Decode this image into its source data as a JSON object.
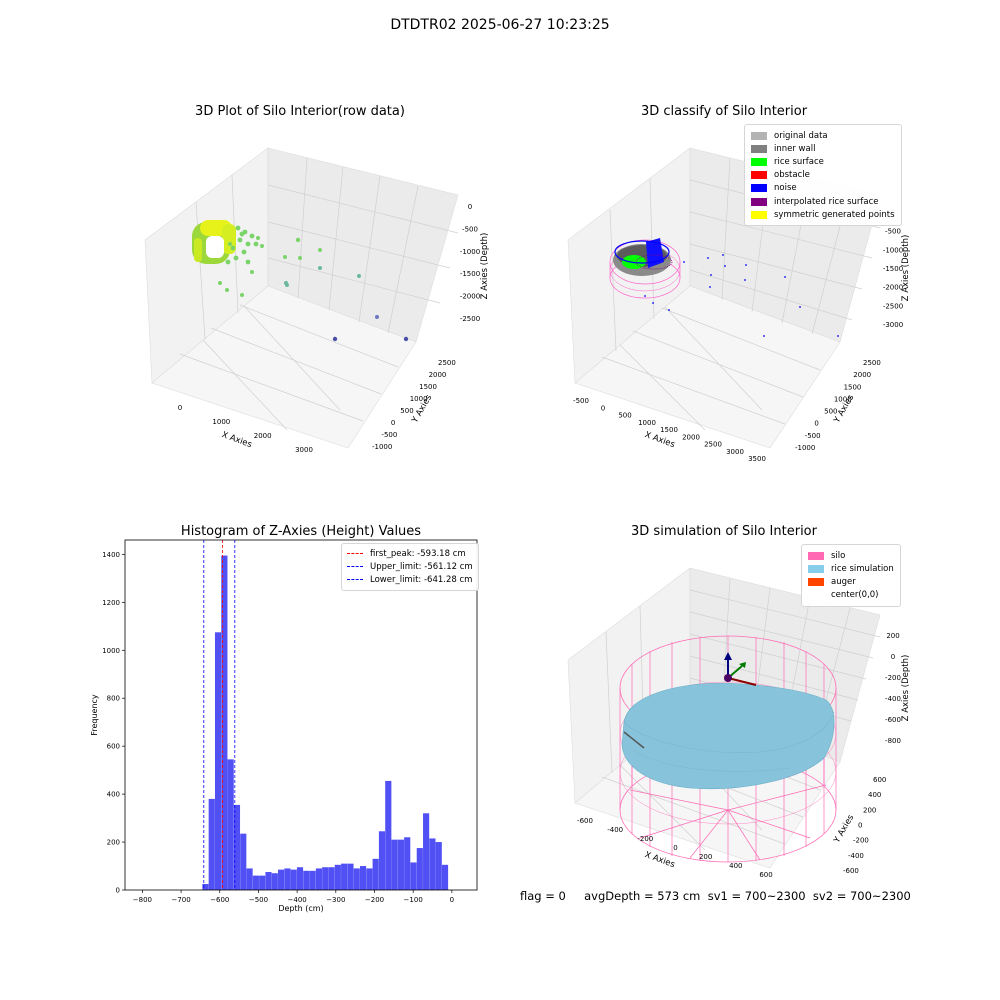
{
  "suptitle": "DTDTR02 2025-06-27 10:23:25",
  "chart_data": [
    {
      "type": "scatter",
      "title": "3D Plot of Silo Interior(row data)",
      "xlabel": "X Axies",
      "ylabel": "Y Axies",
      "zlabel": "Z Axies (Depth)",
      "x_ticks": [
        "0",
        "1000",
        "2000",
        "3000"
      ],
      "y_ticks": [
        "-1000",
        "-500",
        "0",
        "500",
        "1000",
        "1500",
        "2000",
        "2500"
      ],
      "z_ticks": [
        "0",
        "-500",
        "-1000",
        "-1500",
        "-2000",
        "-2500"
      ]
    },
    {
      "type": "scatter",
      "title": "3D classify of Silo Interior",
      "xlabel": "X Axies",
      "ylabel": "Y Axies",
      "zlabel": "Z Axies (Depth)",
      "x_ticks": [
        "-500",
        "0",
        "500",
        "1000",
        "1500",
        "2000",
        "2500",
        "3000",
        "3500"
      ],
      "y_ticks": [
        "-1000",
        "-500",
        "0",
        "500",
        "1000",
        "1500",
        "2000",
        "2500"
      ],
      "z_ticks": [
        "0",
        "-500",
        "-1000",
        "-1500",
        "-2000",
        "-2500",
        "-3000"
      ],
      "legend": [
        {
          "label": "original data",
          "color": "#b3b3b3"
        },
        {
          "label": "inner wall",
          "color": "#808080"
        },
        {
          "label": "rice surface",
          "color": "#00ff00"
        },
        {
          "label": "obstacle",
          "color": "#ff0000"
        },
        {
          "label": "noise",
          "color": "#0000ff"
        },
        {
          "label": "interpolated rice surface",
          "color": "#800080"
        },
        {
          "label": "symmetric generated points",
          "color": "#ffff00"
        }
      ]
    },
    {
      "type": "bar",
      "title": "Histogram of Z-Axies (Height) Values",
      "xlabel": "Depth (cm)",
      "ylabel": "Frequency",
      "xlim": [
        -845,
        65
      ],
      "ylim": [
        0,
        1460
      ],
      "x_ticks": [
        -800,
        -700,
        -600,
        -500,
        -400,
        -300,
        -200,
        -100,
        0
      ],
      "y_ticks": [
        0,
        200,
        400,
        600,
        800,
        1000,
        1200,
        1400
      ],
      "bar_color": "#5050f5",
      "bin_start": -645,
      "bin_width": 16.3,
      "values": [
        25,
        380,
        1075,
        1395,
        545,
        355,
        235,
        90,
        60,
        60,
        75,
        70,
        85,
        90,
        85,
        95,
        80,
        80,
        90,
        95,
        95,
        105,
        110,
        110,
        90,
        100,
        90,
        130,
        245,
        455,
        210,
        210,
        220,
        115,
        175,
        320,
        215,
        200,
        105
      ],
      "vlines": [
        {
          "label": "first_peak: -593.18 cm",
          "value": -593.18,
          "color": "#ff0000"
        },
        {
          "label": "Upper_limit: -561.12 cm",
          "value": -561.12,
          "color": "#0000ff"
        },
        {
          "label": "Lower_limit: -641.28 cm",
          "value": -641.28,
          "color": "#0000ff"
        }
      ]
    },
    {
      "type": "scatter",
      "title": "3D simulation of Silo Interior",
      "xlabel": "X Axies",
      "ylabel": "Y Axies",
      "zlabel": "Z Axies (Depth)",
      "x_ticks": [
        "-600",
        "-400",
        "-200",
        "0",
        "200",
        "400",
        "600"
      ],
      "y_ticks": [
        "-600",
        "-400",
        "-200",
        "0",
        "200",
        "400",
        "600"
      ],
      "z_ticks": [
        "200",
        "0",
        "-200",
        "-400",
        "-600",
        "-800"
      ],
      "legend": [
        {
          "label": "silo",
          "color": "#ff69b4"
        },
        {
          "label": "rice simulation",
          "color": "#87ceeb"
        },
        {
          "label": "auger",
          "color": "#ff4500"
        },
        {
          "label": "center(0,0)",
          "color": "#ffffff"
        }
      ]
    }
  ],
  "footer": "flag = 0     avgDepth = 573 cm  sv1 = 700~2300  sv2 = 700~2300"
}
